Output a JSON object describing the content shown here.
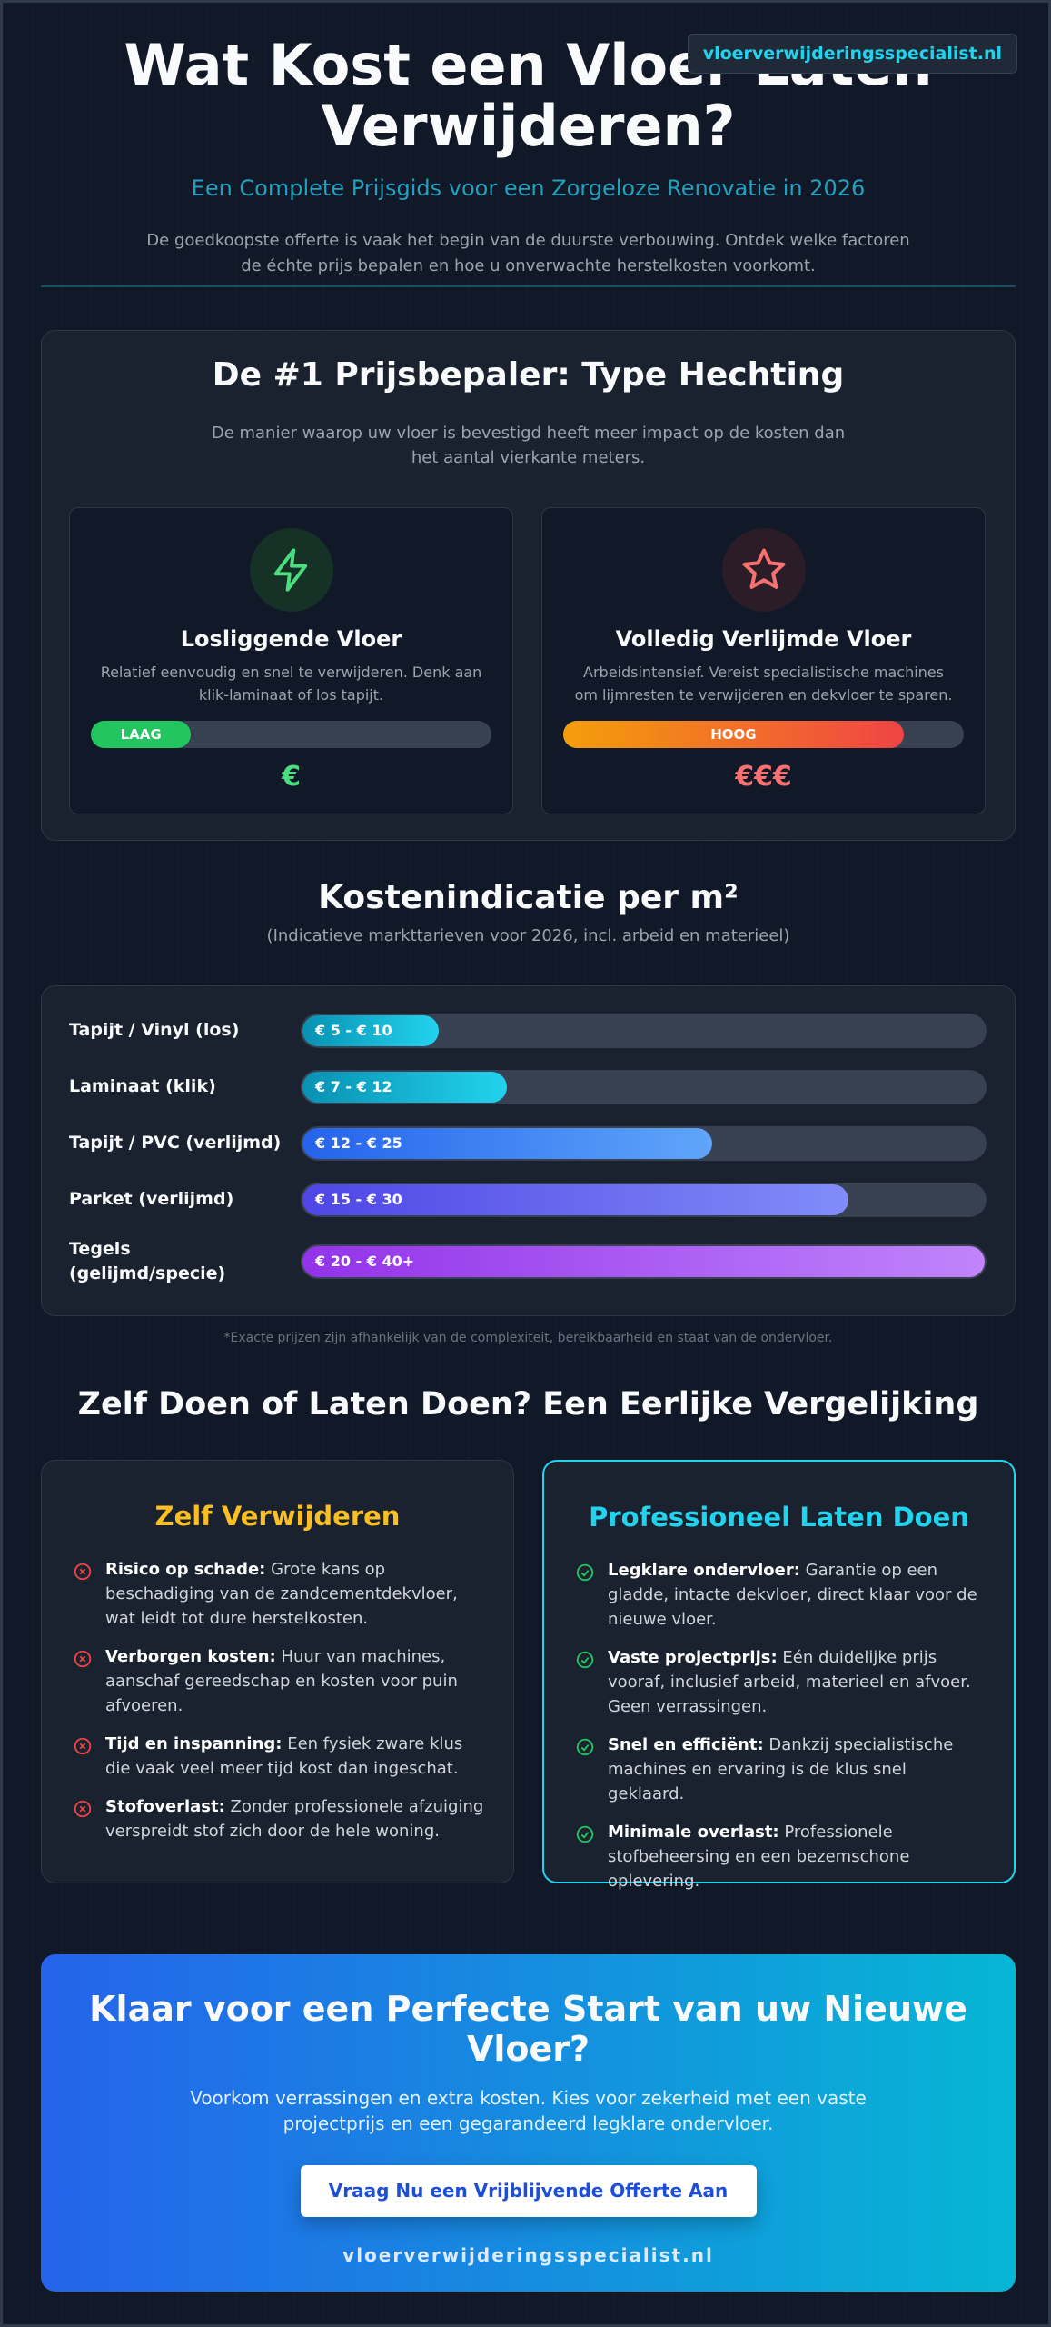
{
  "site_badge": "vloerverwijderingsspecialist.nl",
  "hero": {
    "title": "Wat Kost een Vloer Laten Verwijderen?",
    "subtitle": "Een Complete Prijsgids voor een Zorgeloze Renovatie in 2026",
    "intro": "De goedkoopste offerte is vaak het begin van de duurste verbouwing. Ontdek welke factoren de échte prijs bepalen en hoe u onverwachte herstelkosten voorkomt."
  },
  "adhesion": {
    "title": "De #1 Prijsbepaler: Type Hechting",
    "intro": "De manier waarop uw vloer is bevestigd heeft meer impact op de kosten dan het aantal vierkante meters.",
    "cards": [
      {
        "icon": "lightning-icon",
        "title": "Losliggende Vloer",
        "desc": "Relatief eenvoudig en snel te verwijderen. Denk aan klik-laminaat of los tapijt.",
        "level_label": "LAAG",
        "level": 0.25,
        "price": "€",
        "color": "#4ade80"
      },
      {
        "icon": "star-icon",
        "title": "Volledig Verlijmde Vloer",
        "desc": "Arbeidsintensief. Vereist specialistische machines om lijmresten te verwijderen en dekvloer te sparen.",
        "level_label": "HOOG",
        "level": 0.85,
        "price": "€€€",
        "color": "#f87171"
      }
    ]
  },
  "costs": {
    "title": "Kostenindicatie per m²",
    "subtitle": "(Indicatieve markttarieven voor 2026, incl. arbeid en materieel)",
    "rows": [
      {
        "label": "Tapijt / Vinyl (los)",
        "range": "€ 5 - € 10",
        "level": 0.2,
        "from": "#0891b2",
        "to": "#22d3ee"
      },
      {
        "label": "Laminaat (klik)",
        "range": "€ 7 - € 12",
        "level": 0.3,
        "from": "#0891b2",
        "to": "#22d3ee"
      },
      {
        "label": "Tapijt / PVC (verlijmd)",
        "range": "€ 12 - € 25",
        "level": 0.6,
        "from": "#2563eb",
        "to": "#60a5fa"
      },
      {
        "label": "Parket (verlijmd)",
        "range": "€ 15 - € 30",
        "level": 0.8,
        "from": "#4f46e5",
        "to": "#818cf8"
      },
      {
        "label": "Tegels (gelijmd/specie)",
        "range": "€ 20 - € 40+",
        "level": 1.0,
        "from": "#9333ea",
        "to": "#c084fc"
      }
    ],
    "note": "*Exacte prijzen zijn afhankelijk van de complexiteit, bereikbaarheid en staat van de ondervloer."
  },
  "comparison": {
    "title": "Zelf Doen of Laten Doen? Een Eerlijke Vergelijking",
    "diy": {
      "title": "Zelf Verwijderen",
      "color": "#fbbf24",
      "items": [
        {
          "bold": "Risico op schade:",
          "text": "Grote kans op beschadiging van de zandcementdekvloer, wat leidt tot dure herstelkosten."
        },
        {
          "bold": "Verborgen kosten:",
          "text": "Huur van machines, aanschaf gereedschap en kosten voor puin afvoeren."
        },
        {
          "bold": "Tijd en inspanning:",
          "text": "Een fysiek zware klus die vaak veel meer tijd kost dan ingeschat."
        },
        {
          "bold": "Stofoverlast:",
          "text": "Zonder professionele afzuiging verspreidt stof zich door de hele woning."
        }
      ]
    },
    "pro": {
      "title": "Professioneel Laten Doen",
      "color": "#22d3ee",
      "items": [
        {
          "bold": "Legklare ondervloer:",
          "text": "Garantie op een gladde, intacte dekvloer, direct klaar voor de nieuwe vloer."
        },
        {
          "bold": "Vaste projectprijs:",
          "text": "Eén duidelijke prijs vooraf, inclusief arbeid, materieel en afvoer. Geen verrassingen."
        },
        {
          "bold": "Snel en efficiënt:",
          "text": "Dankzij specialistische machines en ervaring is de klus snel geklaard."
        },
        {
          "bold": "Minimale overlast:",
          "text": "Professionele stofbeheersing en een bezemschone oplevering."
        }
      ]
    }
  },
  "cta": {
    "title": "Klaar voor een Perfecte Start van uw Nieuwe Vloer?",
    "text": "Voorkom verrassingen en extra kosten. Kies voor zekerheid met een vaste projectprijs en een gegarandeerd legklare ondervloer.",
    "button": "Vraag Nu een Vrijblijvende Offerte Aan",
    "footer": "vloerverwijderingsspecialist.nl"
  }
}
